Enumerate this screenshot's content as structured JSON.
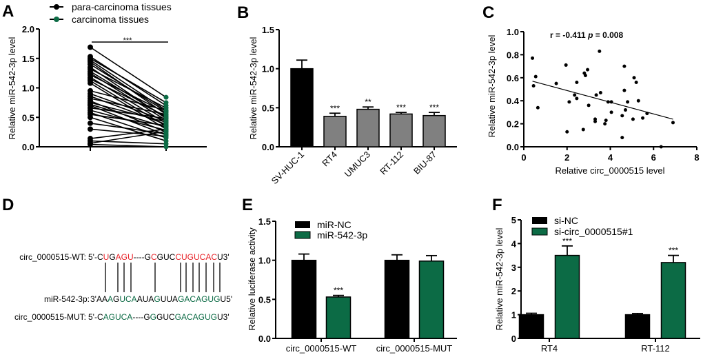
{
  "figure": {
    "panels": [
      "A",
      "B",
      "C",
      "D",
      "E",
      "F"
    ]
  },
  "colors": {
    "black": "#000000",
    "green": "#0c6b45",
    "gray": "#808080",
    "red": "#e8242a"
  },
  "chart_data": [
    {
      "panel": "A",
      "type": "line",
      "title": "",
      "xlabel": "",
      "ylabel": "Relative miR-542-3p level",
      "ylim": [
        0,
        2.0
      ],
      "yticks": [
        "0.0",
        "0.5",
        "1.0",
        "1.5",
        "2.0"
      ],
      "legend": [
        "para-carcinoma tissues",
        "carcinoma tissues"
      ],
      "legend_position": "top",
      "significance": "***",
      "pairs": [
        [
          1.69,
          0.84
        ],
        [
          1.53,
          0.7
        ],
        [
          1.5,
          0.75
        ],
        [
          1.47,
          0.62
        ],
        [
          1.44,
          0.55
        ],
        [
          1.4,
          0.6
        ],
        [
          1.35,
          0.48
        ],
        [
          1.32,
          0.66
        ],
        [
          1.28,
          0.5
        ],
        [
          1.25,
          0.45
        ],
        [
          1.22,
          0.58
        ],
        [
          1.18,
          0.4
        ],
        [
          1.15,
          0.52
        ],
        [
          1.12,
          0.35
        ],
        [
          1.08,
          0.3
        ],
        [
          0.95,
          0.62
        ],
        [
          0.9,
          0.44
        ],
        [
          0.86,
          0.38
        ],
        [
          0.82,
          0.55
        ],
        [
          0.78,
          0.25
        ],
        [
          0.75,
          0.42
        ],
        [
          0.72,
          0.33
        ],
        [
          0.7,
          0.2
        ],
        [
          0.66,
          0.48
        ],
        [
          0.62,
          0.28
        ],
        [
          0.58,
          0.15
        ],
        [
          0.55,
          0.36
        ],
        [
          0.5,
          0.1
        ],
        [
          0.4,
          0.22
        ],
        [
          0.3,
          0.18
        ],
        [
          0.14,
          0.3
        ],
        [
          0.1,
          0.05
        ],
        [
          0.06,
          0.26
        ],
        [
          0.04,
          0.0
        ]
      ]
    },
    {
      "panel": "B",
      "type": "bar",
      "ylabel": "Relative miR-542-3p level",
      "ylim": [
        0,
        1.5
      ],
      "yticks": [
        "0.0",
        "0.5",
        "1.0",
        "1.5"
      ],
      "categories": [
        "SV-HUC-1",
        "RT4",
        "UMUC3",
        "RT-112",
        "BIU-87"
      ],
      "values": [
        1.0,
        0.39,
        0.48,
        0.42,
        0.4
      ],
      "errors": [
        0.11,
        0.04,
        0.03,
        0.02,
        0.04
      ],
      "significance": [
        "",
        "***",
        "**",
        "***",
        "***"
      ]
    },
    {
      "panel": "C",
      "type": "scatter",
      "xlabel": "Relative circ_0000515 level",
      "ylabel": "Relative miR-542-3p level",
      "xlim": [
        0,
        8
      ],
      "ylim": [
        0,
        1.0
      ],
      "xticks": [
        "0",
        "2",
        "4",
        "6",
        "8"
      ],
      "yticks": [
        "0.0",
        "0.2",
        "0.4",
        "0.6",
        "0.8",
        "1.0"
      ],
      "annotation": "r = -0.411 p = 0.008",
      "annotation_r": "r = -0.411",
      "annotation_p_label": "p",
      "annotation_p_value": " = 0.008",
      "fit_line": [
        [
          0.4,
          0.57
        ],
        [
          6.9,
          0.24
        ]
      ],
      "points": [
        [
          0.4,
          0.77
        ],
        [
          0.45,
          0.53
        ],
        [
          0.55,
          0.61
        ],
        [
          0.65,
          0.34
        ],
        [
          1.5,
          0.55
        ],
        [
          1.95,
          0.71
        ],
        [
          2.0,
          0.13
        ],
        [
          2.1,
          0.39
        ],
        [
          2.35,
          0.45
        ],
        [
          2.45,
          0.42
        ],
        [
          2.45,
          0.56
        ],
        [
          2.75,
          0.15
        ],
        [
          2.8,
          0.64
        ],
        [
          2.85,
          0.62
        ],
        [
          2.95,
          0.67
        ],
        [
          3.0,
          0.36
        ],
        [
          3.3,
          0.24
        ],
        [
          3.3,
          0.22
        ],
        [
          3.35,
          0.45
        ],
        [
          3.5,
          0.83
        ],
        [
          3.55,
          0.47
        ],
        [
          3.75,
          0.2
        ],
        [
          3.8,
          0.23
        ],
        [
          3.9,
          0.39
        ],
        [
          4.05,
          0.39
        ],
        [
          4.05,
          0.3
        ],
        [
          4.55,
          0.27
        ],
        [
          4.55,
          0.08
        ],
        [
          4.65,
          0.49
        ],
        [
          4.65,
          0.7
        ],
        [
          4.7,
          0.32
        ],
        [
          4.8,
          0.39
        ],
        [
          5.05,
          0.24
        ],
        [
          5.1,
          0.6
        ],
        [
          5.2,
          0.56
        ],
        [
          5.3,
          0.4
        ],
        [
          5.5,
          0.25
        ],
        [
          5.7,
          0.29
        ],
        [
          6.35,
          0.0
        ],
        [
          6.9,
          0.21
        ]
      ]
    },
    {
      "panel": "E",
      "type": "bar",
      "ylabel": "Relative luciferase activity",
      "ylim": [
        0,
        1.5
      ],
      "yticks": [
        "0.0",
        "0.5",
        "1.0",
        "1.5"
      ],
      "categories": [
        "circ_0000515-WT",
        "circ_0000515-MUT"
      ],
      "legend_position": "top-left",
      "series": [
        {
          "name": "miR-NC",
          "values": [
            1.0,
            1.0
          ],
          "errors": [
            0.08,
            0.07
          ],
          "significance": [
            "",
            ""
          ]
        },
        {
          "name": "miR-542-3p",
          "values": [
            0.53,
            0.99
          ],
          "errors": [
            0.02,
            0.07
          ],
          "significance": [
            "***",
            ""
          ]
        }
      ]
    },
    {
      "panel": "F",
      "type": "bar",
      "ylabel": "Relative miR-542-3p level",
      "ylim": [
        0,
        5
      ],
      "yticks": [
        "0",
        "1",
        "2",
        "3",
        "4",
        "5"
      ],
      "categories": [
        "RT4",
        "RT-112"
      ],
      "legend_position": "top-left",
      "series": [
        {
          "name": "si-NC",
          "values": [
            1.0,
            1.0
          ],
          "errors": [
            0.06,
            0.05
          ],
          "significance": [
            "",
            ""
          ]
        },
        {
          "name": "si-circ_0000515#1",
          "values": [
            3.5,
            3.2
          ],
          "errors": [
            0.4,
            0.3
          ],
          "significance": [
            "***",
            "***"
          ]
        }
      ]
    }
  ],
  "sequences": {
    "wt": {
      "label": "circ_0000515-WT:",
      "segments": [
        {
          "t": "5'-C",
          "c": "k"
        },
        {
          "t": "U",
          "c": "r"
        },
        {
          "t": "G",
          "c": "k"
        },
        {
          "t": "AGU",
          "c": "r"
        },
        {
          "t": "----G",
          "c": "k"
        },
        {
          "t": "C",
          "c": "r"
        },
        {
          "t": "GUC",
          "c": "k"
        },
        {
          "t": "CUGUCAC",
          "c": "r"
        },
        {
          "t": "U3'",
          "c": "k"
        }
      ]
    },
    "mir": {
      "label": "miR-542-3p:",
      "segments": [
        {
          "t": "3'AA",
          "c": "k"
        },
        {
          "t": "A",
          "c": "g"
        },
        {
          "t": "G",
          "c": "k"
        },
        {
          "t": "UCA",
          "c": "g"
        },
        {
          "t": "AUA",
          "c": "k"
        },
        {
          "t": "G",
          "c": "g"
        },
        {
          "t": "UUA",
          "c": "k"
        },
        {
          "t": "GACAGUG",
          "c": "g"
        },
        {
          "t": "U5'",
          "c": "k"
        }
      ]
    },
    "mut": {
      "label": "circ_0000515-MUT:",
      "segments": [
        {
          "t": "5'-C",
          "c": "k"
        },
        {
          "t": "AGUCA",
          "c": "g"
        },
        {
          "t": "----G",
          "c": "k"
        },
        {
          "t": "G",
          "c": "g"
        },
        {
          "t": "GUC",
          "c": "k"
        },
        {
          "t": "GACAGUG",
          "c": "g"
        },
        {
          "t": "U3'",
          "c": "k"
        }
      ]
    }
  }
}
